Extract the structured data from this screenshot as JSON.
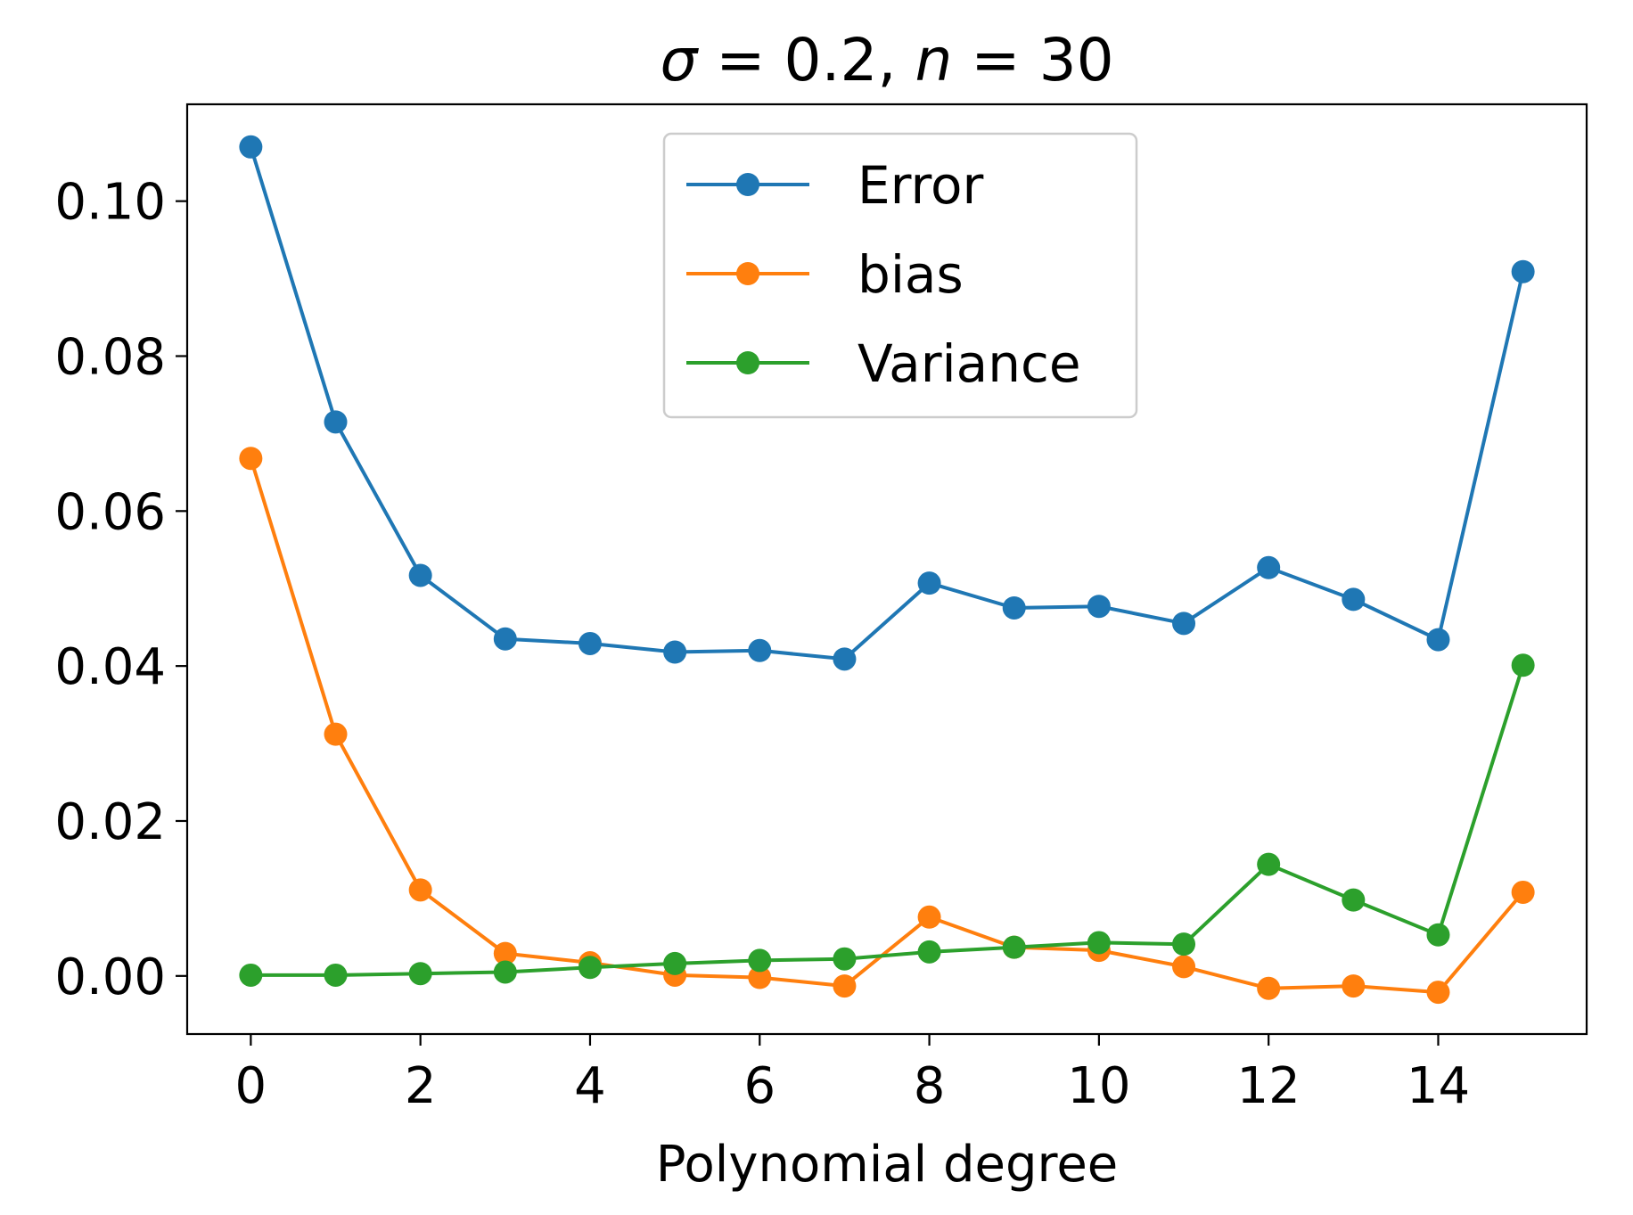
{
  "chart_data": {
    "type": "line",
    "title": "σ = 0.2, n = 30",
    "xlabel": "Polynomial degree",
    "ylabel": "",
    "xlim": [
      -0.75,
      15.75
    ],
    "ylim": [
      -0.0075,
      0.1125
    ],
    "xticks": [
      0,
      2,
      4,
      6,
      8,
      10,
      12,
      14
    ],
    "xtick_labels": [
      "0",
      "2",
      "4",
      "6",
      "8",
      "10",
      "12",
      "14"
    ],
    "yticks": [
      0.0,
      0.02,
      0.04,
      0.06,
      0.08,
      0.1
    ],
    "ytick_labels": [
      "0.00",
      "0.02",
      "0.04",
      "0.06",
      "0.08",
      "0.10"
    ],
    "grid": false,
    "legend_position": "top-center",
    "x": [
      0,
      1,
      2,
      3,
      4,
      5,
      6,
      7,
      8,
      9,
      10,
      11,
      12,
      13,
      14,
      15
    ],
    "series": [
      {
        "name": "Error",
        "color": "#1f77b4",
        "values": [
          0.107,
          0.0715,
          0.0517,
          0.0435,
          0.0429,
          0.0418,
          0.042,
          0.0409,
          0.0507,
          0.0475,
          0.0477,
          0.0455,
          0.0527,
          0.0486,
          0.0434,
          0.0909
        ]
      },
      {
        "name": "bias",
        "color": "#ff7f0e",
        "values": [
          0.0668,
          0.0312,
          0.0111,
          0.0029,
          0.0017,
          0.0001,
          -0.0002,
          -0.0013,
          0.0076,
          0.0037,
          0.0033,
          0.0012,
          -0.0016,
          -0.0013,
          -0.0021,
          0.0108
        ]
      },
      {
        "name": "Variance",
        "color": "#2ca02c",
        "values": [
          0.0001,
          0.0001,
          0.0003,
          0.0005,
          0.0011,
          0.0016,
          0.002,
          0.0022,
          0.0031,
          0.0037,
          0.0043,
          0.0041,
          0.0144,
          0.0098,
          0.0053,
          0.0401
        ]
      }
    ]
  }
}
